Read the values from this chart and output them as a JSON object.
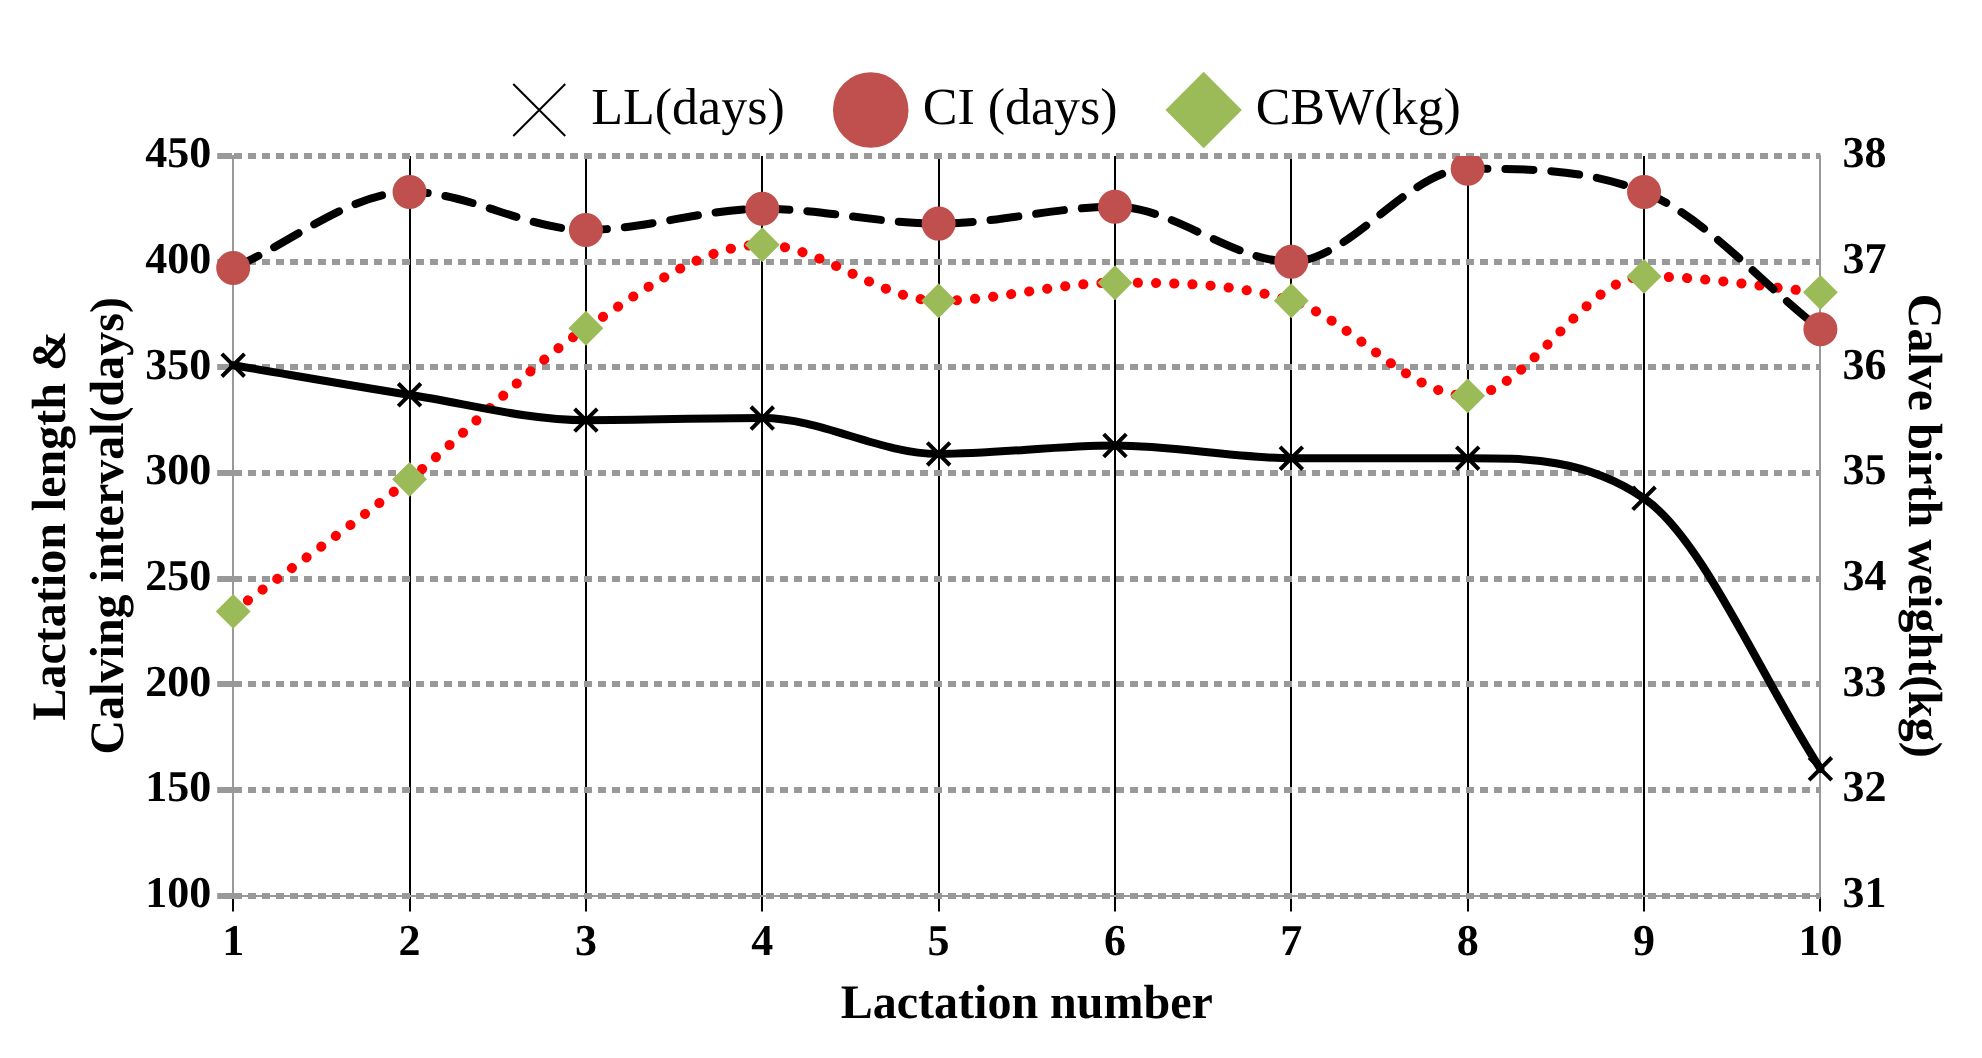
{
  "chart_data": {
    "type": "line",
    "xlabel": "Lactation number",
    "ylabel": "Lactation length & Calving interval(days)",
    "y2label": "Calve birth weight(kg)",
    "categories": [
      "1",
      "2",
      "3",
      "4",
      "5",
      "6",
      "7",
      "8",
      "9",
      "10"
    ],
    "series": [
      {
        "name": "LL(days)",
        "color": "#000000",
        "marker": "cross",
        "line_style": "solid",
        "values": [
          351,
          337,
          325,
          326,
          309,
          313,
          307,
          307,
          288,
          160
        ]
      },
      {
        "name": "CI (days)",
        "color": "#c0504d",
        "marker": "circle",
        "line_style": "dashed",
        "values": [
          397,
          433,
          415,
          425,
          418,
          426,
          400,
          444,
          433,
          368
        ]
      },
      {
        "name": "CBW(kg)",
        "color": "#9bbb59",
        "marker": "diamond",
        "line_style": "dotted",
        "axis": "y2",
        "values": [
          33.69,
          34.94,
          36.37,
          37.16,
          36.63,
          36.8,
          36.63,
          35.73,
          36.86,
          36.71
        ]
      }
    ],
    "ylim": [
      100,
      450
    ],
    "yticks": [
      100,
      150,
      200,
      250,
      300,
      350,
      400,
      450
    ],
    "y2lim": [
      31,
      38
    ],
    "y2ticks": [
      31,
      32,
      33,
      34,
      35,
      36,
      37,
      38
    ],
    "grid": true,
    "legend": "top"
  }
}
